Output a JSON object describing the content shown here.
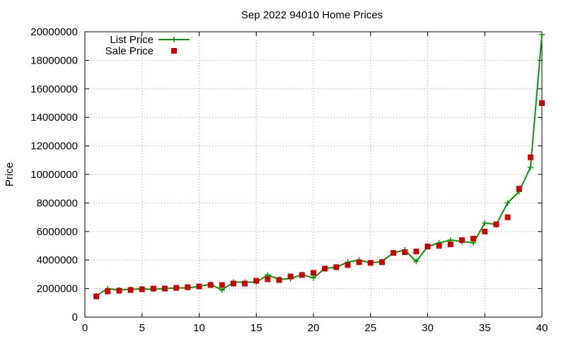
{
  "chart_data": {
    "type": "line",
    "title": "Sep 2022 94010 Home Prices",
    "xlabel": "",
    "ylabel": "Price",
    "xlim": [
      0,
      40
    ],
    "ylim": [
      0,
      20000000
    ],
    "xticks": [
      0,
      5,
      10,
      15,
      20,
      25,
      30,
      35,
      40
    ],
    "yticks": [
      0,
      2000000,
      4000000,
      6000000,
      8000000,
      10000000,
      12000000,
      14000000,
      16000000,
      18000000,
      20000000
    ],
    "grid": true,
    "legend_position": "top-left",
    "series": [
      {
        "name": "List Price",
        "style": "line-plus",
        "color": "#009900",
        "x": [
          1,
          2,
          3,
          4,
          5,
          6,
          7,
          8,
          9,
          10,
          11,
          12,
          13,
          14,
          15,
          16,
          17,
          18,
          19,
          20,
          21,
          22,
          23,
          24,
          25,
          26,
          27,
          28,
          29,
          30,
          31,
          32,
          33,
          34,
          35,
          36,
          37,
          38,
          39,
          40
        ],
        "values": [
          1500000,
          2000000,
          1900000,
          1950000,
          1980000,
          1950000,
          2000000,
          2050000,
          2050000,
          2150000,
          2300000,
          1900000,
          2450000,
          2450000,
          2450000,
          2950000,
          2650000,
          2700000,
          2980000,
          2750000,
          3400000,
          3500000,
          3850000,
          4000000,
          3800000,
          3900000,
          4500000,
          4700000,
          3900000,
          4950000,
          5200000,
          5400000,
          5300000,
          5200000,
          6600000,
          6500000,
          8000000,
          8800000,
          10500000,
          19800000
        ]
      },
      {
        "name": "Sale Price",
        "style": "square",
        "color": "#cc0000",
        "x": [
          1,
          2,
          3,
          4,
          5,
          6,
          7,
          8,
          9,
          10,
          11,
          12,
          13,
          14,
          15,
          16,
          17,
          18,
          19,
          20,
          21,
          22,
          23,
          24,
          25,
          26,
          27,
          28,
          29,
          30,
          31,
          32,
          33,
          34,
          35,
          36,
          37,
          38,
          39,
          40
        ],
        "values": [
          1450000,
          1800000,
          1850000,
          1900000,
          1950000,
          2000000,
          2000000,
          2050000,
          2100000,
          2150000,
          2250000,
          2250000,
          2350000,
          2350000,
          2550000,
          2650000,
          2600000,
          2850000,
          2950000,
          3100000,
          3400000,
          3500000,
          3650000,
          3850000,
          3800000,
          3850000,
          4500000,
          4550000,
          4600000,
          4950000,
          5000000,
          5100000,
          5400000,
          5500000,
          6000000,
          6500000,
          7000000,
          9000000,
          11200000,
          15000000
        ]
      }
    ]
  }
}
